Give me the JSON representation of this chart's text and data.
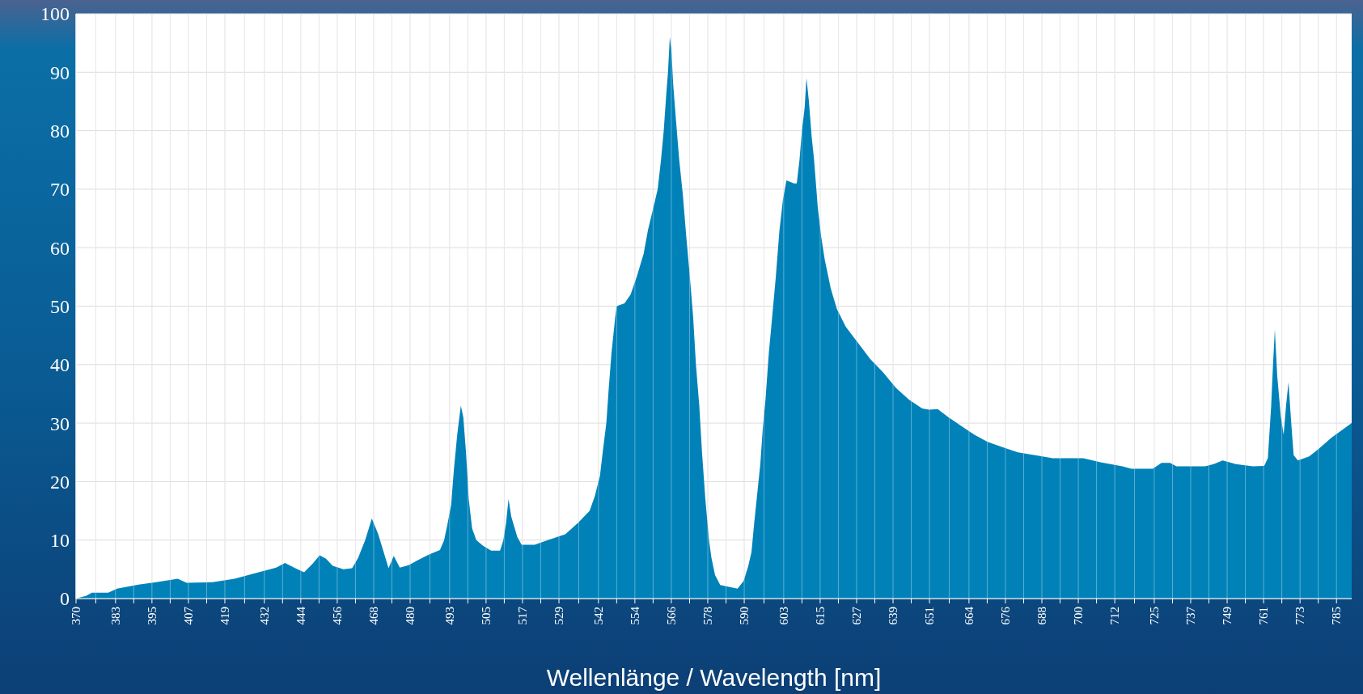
{
  "chart_data": {
    "type": "area",
    "xlabel": "Wellenlänge / Wavelength [nm]",
    "color": "#0082b8",
    "grid": true,
    "xlim": [
      370,
      790
    ],
    "ylim": [
      0,
      100
    ],
    "yticks": [
      0,
      10,
      20,
      30,
      40,
      50,
      60,
      70,
      80,
      90,
      100
    ],
    "xticks": [
      370,
      {
        "value": 376.5,
        "label": null
      },
      383,
      {
        "value": 389,
        "label": null
      },
      395,
      {
        "value": 401,
        "label": null
      },
      407,
      {
        "value": 413,
        "label": null
      },
      419,
      {
        "value": 425.5,
        "label": null
      },
      432,
      {
        "value": 438,
        "label": null
      },
      444,
      {
        "value": 450,
        "label": null
      },
      456,
      {
        "value": 462,
        "label": null
      },
      468,
      {
        "value": 474,
        "label": null
      },
      480,
      {
        "value": 486.5,
        "label": null
      },
      493,
      {
        "value": 499,
        "label": null
      },
      505,
      {
        "value": 511,
        "label": null
      },
      517,
      {
        "value": 523,
        "label": null
      },
      529,
      {
        "value": 535.5,
        "label": null
      },
      542,
      {
        "value": 548,
        "label": null
      },
      554,
      {
        "value": 560,
        "label": null
      },
      566,
      {
        "value": 572,
        "label": null
      },
      578,
      {
        "value": 584,
        "label": null
      },
      590,
      {
        "value": 596.5,
        "label": null
      },
      603,
      {
        "value": 609,
        "label": null
      },
      615,
      {
        "value": 621,
        "label": null
      },
      627,
      {
        "value": 633,
        "label": null
      },
      639,
      {
        "value": 645,
        "label": null
      },
      651,
      {
        "value": 657.5,
        "label": null
      },
      664,
      {
        "value": 670,
        "label": null
      },
      676,
      {
        "value": 682,
        "label": null
      },
      688,
      {
        "value": 694,
        "label": null
      },
      700,
      {
        "value": 706,
        "label": null
      },
      712,
      {
        "value": 718.5,
        "label": null
      },
      725,
      {
        "value": 731,
        "label": null
      },
      737,
      {
        "value": 743,
        "label": null
      },
      749,
      {
        "value": 755,
        "label": null
      },
      761,
      {
        "value": 767,
        "label": null
      },
      773,
      {
        "value": 779,
        "label": null
      },
      785
    ],
    "x": [
      370,
      373.4,
      375.2,
      380.6,
      383.5,
      390.6,
      396.4,
      403.5,
      406.4,
      415,
      422.2,
      427.9,
      435.9,
      438.8,
      442.2,
      445.1,
      448,
      450.2,
      452.3,
      454.5,
      458,
      460.9,
      462.9,
      465.2,
      467.4,
      469.5,
      472.9,
      474.6,
      476.6,
      479.5,
      482.3,
      486.1,
      489.8,
      491.2,
      492.4,
      493.5,
      494.4,
      495.5,
      496.7,
      497.5,
      498.4,
      499.3,
      500.4,
      501.8,
      504.1,
      506.7,
      509.6,
      510.7,
      511.6,
      512.4,
      513.3,
      515.3,
      516.7,
      521,
      525.3,
      531.1,
      535.4,
      539.1,
      540.8,
      542.5,
      543.4,
      544.6,
      545.4,
      546.3,
      547.5,
      548,
      550.6,
      552.6,
      554.6,
      556.9,
      558.3,
      559.7,
      561.5,
      562.6,
      563.5,
      564.3,
      564.9,
      565.5,
      566,
      566.6,
      567.5,
      568.6,
      569.8,
      570.9,
      572.1,
      573.2,
      574.1,
      575.2,
      576.1,
      577.2,
      578.4,
      579.2,
      580.4,
      582.1,
      584.9,
      587.8,
      589.8,
      591.3,
      592.4,
      593.3,
      594.1,
      595.3,
      596.1,
      597,
      598.1,
      599,
      600.4,
      601.6,
      602.7,
      603.9,
      606.4,
      607.3,
      608.2,
      609,
      609.9,
      610.5,
      611.3,
      612.2,
      613,
      614.2,
      615.3,
      616.5,
      618.5,
      620.5,
      623.4,
      625.6,
      628.5,
      631.4,
      635.7,
      640,
      644.3,
      648.6,
      650.9,
      653.7,
      657.2,
      661.5,
      665.8,
      670.1,
      674.4,
      680.1,
      685.8,
      691.6,
      701.6,
      707.3,
      714.5,
      717.4,
      724.5,
      727.4,
      730.2,
      732.3,
      741.7,
      744.6,
      747.5,
      751.8,
      757.5,
      761.2,
      762.4,
      763.5,
      764.1,
      764.7,
      765.5,
      766.7,
      767.6,
      768.4,
      769.2,
      770.1,
      770.9,
      772.3,
      776,
      778.9,
      783.3,
      790
    ],
    "values": [
      0,
      0.5,
      1,
      1,
      1.7,
      2.4,
      2.8,
      3.4,
      2.7,
      2.8,
      3.4,
      4.2,
      5.3,
      6.1,
      5.2,
      4.5,
      6,
      7.4,
      6.8,
      5.6,
      5,
      5.2,
      7,
      10,
      13.7,
      11,
      5.2,
      7.3,
      5.3,
      5.7,
      6.5,
      7.5,
      8.3,
      10,
      13,
      16,
      22,
      28,
      33,
      31,
      25,
      17,
      12,
      10,
      9,
      8.2,
      8.2,
      10,
      13,
      17,
      14,
      10.5,
      9.2,
      9.2,
      10,
      11,
      13,
      15,
      17.5,
      21,
      25,
      30,
      36,
      42,
      48,
      50,
      50.5,
      52,
      55,
      59,
      63,
      66,
      70,
      75,
      80,
      86,
      90,
      96,
      94,
      88,
      82,
      75,
      69,
      62,
      55,
      48,
      40,
      33,
      25,
      17,
      10,
      7,
      4,
      2.3,
      2,
      1.7,
      3,
      5.5,
      8,
      13,
      17,
      23,
      29,
      34,
      42,
      47,
      55,
      63,
      68,
      71.5,
      71,
      71,
      75,
      80,
      84,
      89,
      85,
      79,
      75,
      67,
      62,
      58,
      53,
      49.5,
      46.5,
      45,
      43,
      41,
      38.7,
      36,
      34,
      32.5,
      32.3,
      32.4,
      31,
      29.5,
      28,
      26.8,
      26,
      25,
      24.5,
      24,
      24,
      23.3,
      22.6,
      22.2,
      22.2,
      23.2,
      23.2,
      22.6,
      22.6,
      23,
      23.6,
      23,
      22.6,
      22.7,
      24,
      33,
      40,
      46,
      38,
      31,
      28,
      33,
      37,
      30,
      24.5,
      23.6,
      24.3,
      25.5,
      27.5,
      30
    ]
  }
}
